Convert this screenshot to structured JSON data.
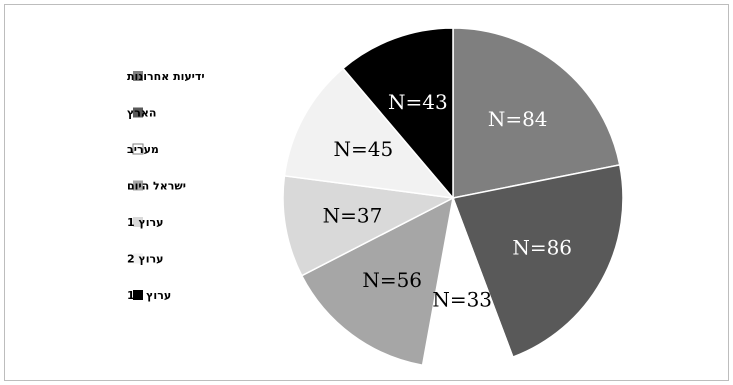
{
  "chart_data": {
    "type": "pie",
    "title": "",
    "legend_position": "left",
    "slices": [
      {
        "name": "ידיעות אחרונות",
        "value": 84,
        "label": "N=84",
        "color": "#7f7f7f",
        "label_color": "#ffffff"
      },
      {
        "name": "הארץ",
        "value": 86,
        "label": "N=86",
        "color": "#595959",
        "label_color": "#ffffff"
      },
      {
        "name": "מעריב",
        "value": 33,
        "label": "N=33",
        "color": "#ffffff",
        "label_color": "#000000"
      },
      {
        "name": "ישראל היום",
        "value": 56,
        "label": "N=56",
        "color": "#a6a6a6",
        "label_color": "#000000"
      },
      {
        "name": "ערוץ 1",
        "value": 37,
        "label": "N=37",
        "color": "#d9d9d9",
        "label_color": "#000000"
      },
      {
        "name": "ערוץ 2",
        "value": 45,
        "label": "N=45",
        "color": "#f2f2f2",
        "label_color": "#000000"
      },
      {
        "name": "ערוץ 10",
        "value": 43,
        "label": "N=43",
        "color": "#000000",
        "label_color": "#ffffff"
      }
    ]
  }
}
